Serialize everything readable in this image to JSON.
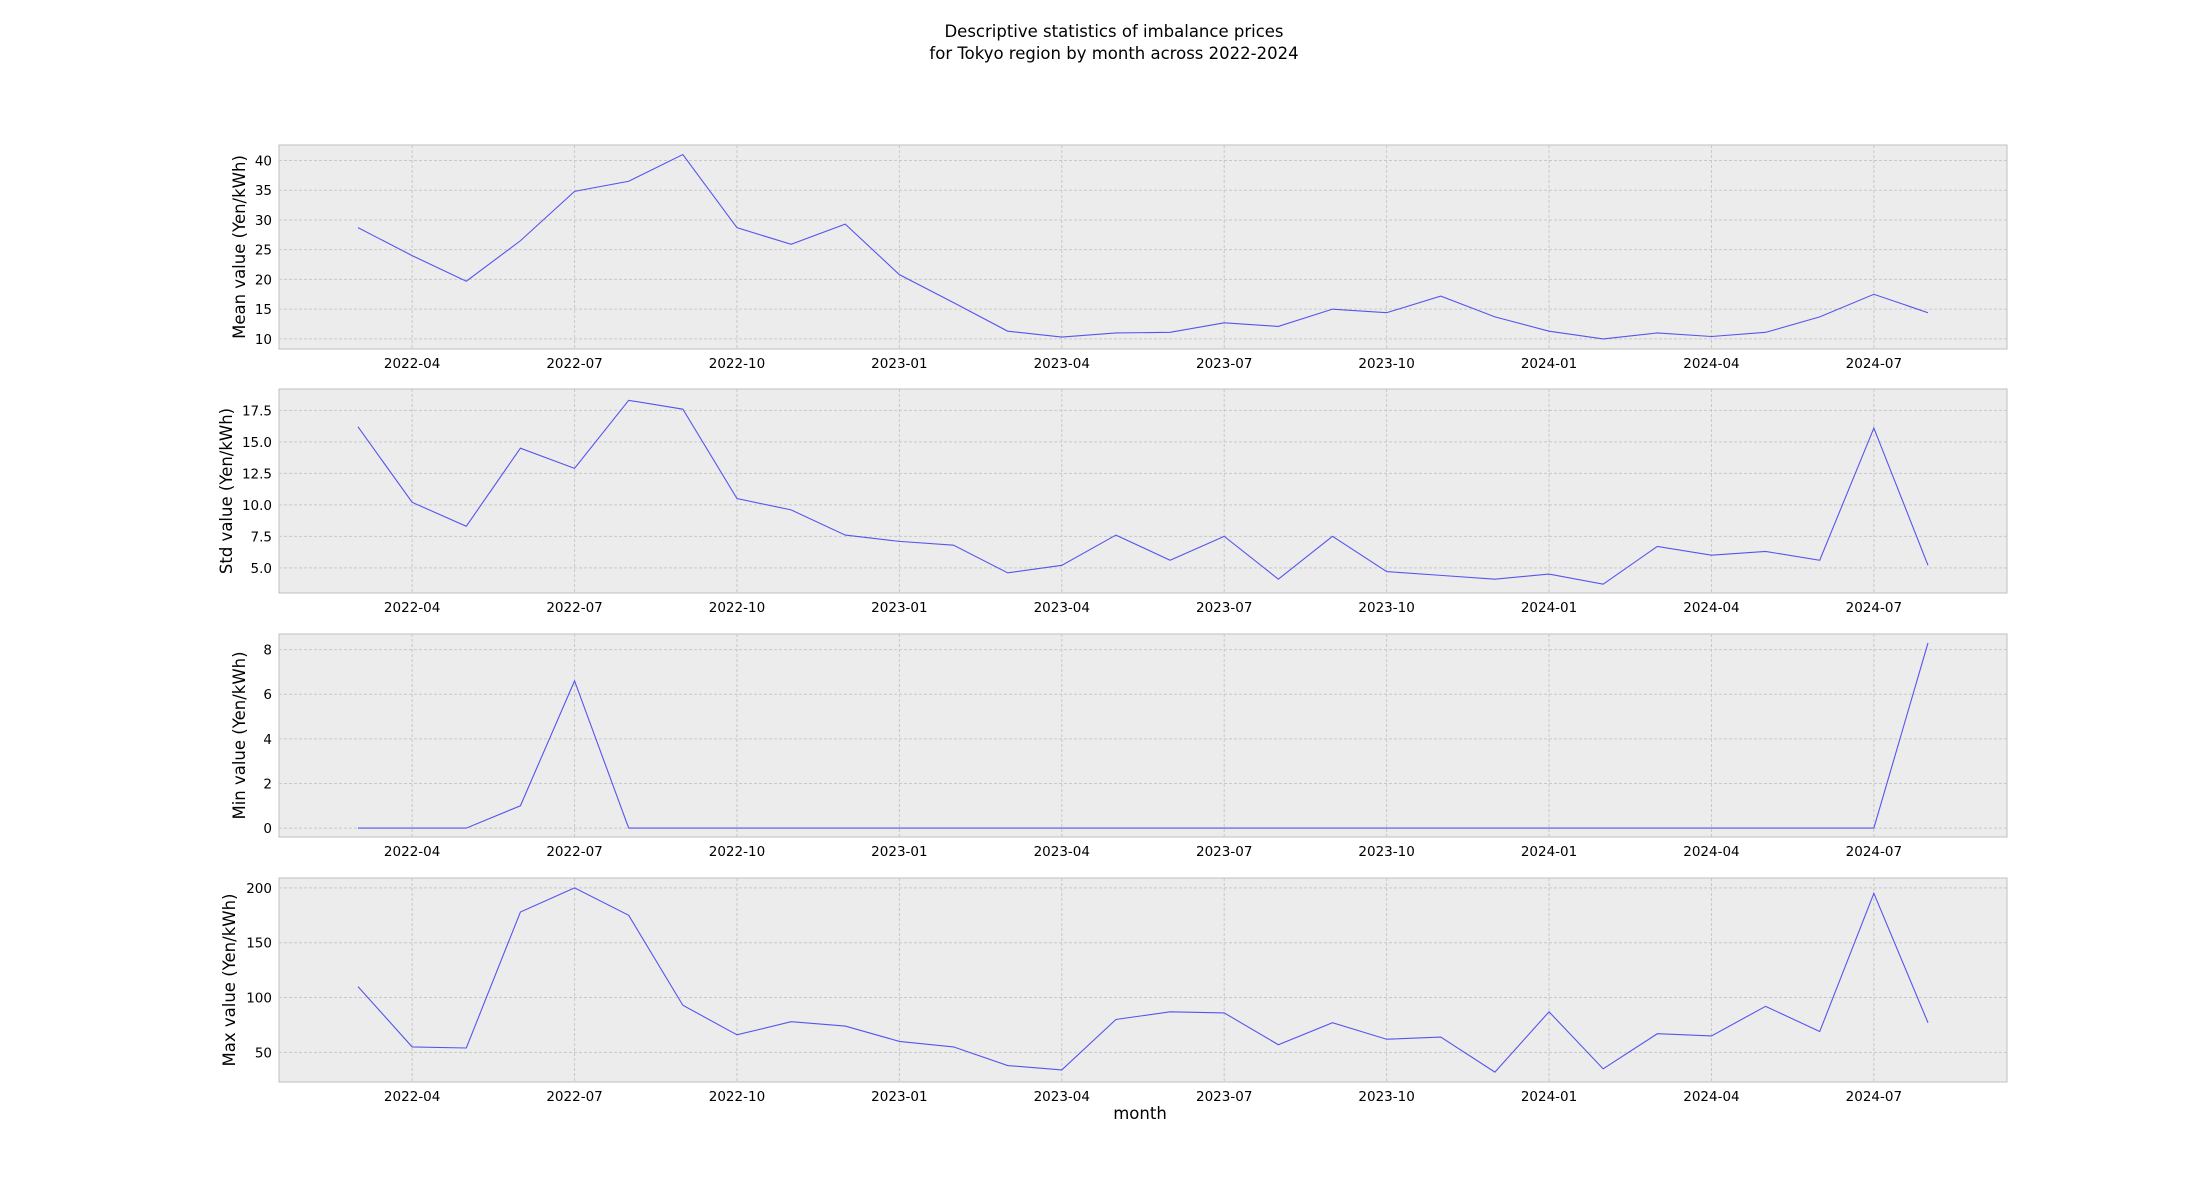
{
  "chart_data": {
    "type": "line",
    "title_line1": "Descriptive statistics of imbalance prices",
    "title_line2": "for Tokyo region by month across 2022-2024",
    "xlabel": "month",
    "x": [
      "2022-03",
      "2022-04",
      "2022-05",
      "2022-06",
      "2022-07",
      "2022-08",
      "2022-09",
      "2022-10",
      "2022-11",
      "2022-12",
      "2023-01",
      "2023-02",
      "2023-03",
      "2023-04",
      "2023-05",
      "2023-06",
      "2023-07",
      "2023-08",
      "2023-09",
      "2023-10",
      "2023-11",
      "2023-12",
      "2024-01",
      "2024-02",
      "2024-03",
      "2024-04",
      "2024-05",
      "2024-06",
      "2024-07",
      "2024-08"
    ],
    "x_ticks": [
      "2022-04",
      "2022-07",
      "2022-10",
      "2023-01",
      "2023-04",
      "2023-07",
      "2023-10",
      "2024-01",
      "2024-04",
      "2024-07"
    ],
    "grid": true,
    "series_color": "#5555ee",
    "panels": [
      {
        "ylabel": "Mean value (Yen/kWh)",
        "ylim": [
          8.3,
          42.6
        ],
        "yticks": [
          10,
          15,
          20,
          25,
          30,
          35,
          40
        ],
        "ytick_labels": [
          "10",
          "15",
          "20",
          "25",
          "30",
          "35",
          "40"
        ],
        "values": [
          28.7,
          24.0,
          19.7,
          26.5,
          34.8,
          36.5,
          41.0,
          28.7,
          25.9,
          29.3,
          20.8,
          16.1,
          11.3,
          10.3,
          11.0,
          11.1,
          12.7,
          12.1,
          15.0,
          14.4,
          17.2,
          13.7,
          11.3,
          10.0,
          11.0,
          10.4,
          11.1,
          13.7,
          17.5,
          14.4
        ]
      },
      {
        "ylabel": "Std value (Yen/kWh)",
        "ylim": [
          3.0,
          19.2
        ],
        "yticks": [
          5.0,
          7.5,
          10.0,
          12.5,
          15.0,
          17.5
        ],
        "ytick_labels": [
          "5.0",
          "7.5",
          "10.0",
          "12.5",
          "15.0",
          "17.5"
        ],
        "values": [
          16.2,
          10.2,
          8.3,
          14.5,
          12.9,
          18.3,
          17.6,
          10.5,
          9.6,
          7.6,
          7.1,
          6.8,
          4.6,
          5.2,
          7.6,
          5.6,
          7.5,
          4.1,
          7.5,
          4.7,
          4.4,
          4.1,
          4.5,
          3.7,
          6.7,
          6.0,
          6.3,
          5.6,
          16.1,
          5.2
        ]
      },
      {
        "ylabel": "Min value (Yen/kWh)",
        "ylim": [
          -0.4,
          8.7
        ],
        "yticks": [
          0,
          2,
          4,
          6,
          8
        ],
        "ytick_labels": [
          "0",
          "2",
          "4",
          "6",
          "8"
        ],
        "values": [
          0,
          0,
          0,
          1.0,
          6.6,
          0,
          0,
          0,
          0,
          0,
          0,
          0,
          0,
          0,
          0,
          0,
          0,
          0,
          0,
          0,
          0,
          0,
          0,
          0,
          0,
          0,
          0,
          0,
          0,
          8.3
        ]
      },
      {
        "ylabel": "Max value (Yen/kWh)",
        "ylim": [
          23,
          209
        ],
        "yticks": [
          50,
          100,
          150,
          200
        ],
        "ytick_labels": [
          "50",
          "100",
          "150",
          "200"
        ],
        "values": [
          110,
          55,
          54,
          178,
          200,
          175,
          93,
          66,
          78,
          74,
          60,
          55,
          38,
          34,
          80,
          87,
          86,
          57,
          77,
          62,
          64,
          32,
          87,
          35,
          67,
          65,
          92,
          69,
          195,
          77
        ]
      }
    ]
  }
}
